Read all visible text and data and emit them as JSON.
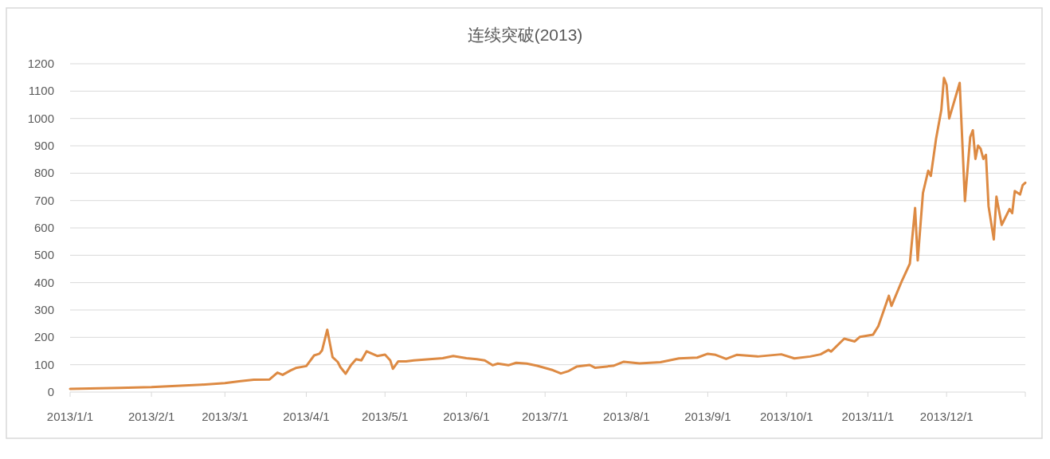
{
  "chart_data": {
    "type": "line",
    "title": "连续突破(2013)",
    "x": [
      "2013-01-01",
      "2013-01-20",
      "2013-02-01",
      "2013-02-20",
      "2013-03-01",
      "2013-03-07",
      "2013-03-12",
      "2013-03-18",
      "2013-03-21",
      "2013-03-23",
      "2013-03-26",
      "2013-03-28",
      "2013-04-01",
      "2013-04-04",
      "2013-04-06",
      "2013-04-07",
      "2013-04-09",
      "2013-04-11",
      "2013-04-13",
      "2013-04-14",
      "2013-04-16",
      "2013-04-18",
      "2013-04-20",
      "2013-04-22",
      "2013-04-24",
      "2013-04-28",
      "2013-05-01",
      "2013-05-03",
      "2013-05-04",
      "2013-05-06",
      "2013-05-09",
      "2013-05-12",
      "2013-05-18",
      "2013-05-23",
      "2013-05-27",
      "2013-06-01",
      "2013-06-05",
      "2013-06-08",
      "2013-06-11",
      "2013-06-13",
      "2013-06-17",
      "2013-06-20",
      "2013-06-24",
      "2013-06-28",
      "2013-07-04",
      "2013-07-07",
      "2013-07-10",
      "2013-07-13",
      "2013-07-18",
      "2013-07-20",
      "2013-07-27",
      "2013-07-31",
      "2013-08-06",
      "2013-08-14",
      "2013-08-21",
      "2013-08-28",
      "2013-09-01",
      "2013-09-04",
      "2013-09-08",
      "2013-09-12",
      "2013-09-20",
      "2013-09-29",
      "2013-10-04",
      "2013-10-10",
      "2013-10-14",
      "2013-10-17",
      "2013-10-18",
      "2013-10-23",
      "2013-10-27",
      "2013-10-29",
      "2013-11-03",
      "2013-11-05",
      "2013-11-09",
      "2013-11-10",
      "2013-11-14",
      "2013-11-17",
      "2013-11-19",
      "2013-11-20",
      "2013-11-22",
      "2013-11-24",
      "2013-11-25",
      "2013-11-27",
      "2013-11-29",
      "2013-11-30",
      "2013-12-01",
      "2013-12-02",
      "2013-12-06",
      "2013-12-08",
      "2013-12-10",
      "2013-12-11",
      "2013-12-12",
      "2013-12-13",
      "2013-12-14",
      "2013-12-15",
      "2013-12-16",
      "2013-12-17",
      "2013-12-19",
      "2013-12-20",
      "2013-12-22",
      "2013-12-25",
      "2013-12-26",
      "2013-12-27",
      "2013-12-29",
      "2013-12-30",
      "2013-12-31"
    ],
    "series": [
      {
        "color": "#dd8a43",
        "values": [
          12,
          15,
          18,
          27,
          33,
          40,
          45,
          46,
          71,
          63,
          79,
          88,
          95,
          134,
          140,
          152,
          228,
          128,
          110,
          91,
          67,
          98,
          120,
          116,
          149,
          132,
          137,
          116,
          85,
          112,
          112,
          116,
          120,
          124,
          132,
          124,
          120,
          116,
          98,
          104,
          98,
          107,
          104,
          96,
          80,
          68,
          77,
          93,
          99,
          89,
          96,
          111,
          105,
          109,
          123,
          126,
          140,
          136,
          121,
          136,
          130,
          138,
          123,
          130,
          138,
          154,
          148,
          195,
          185,
          202,
          210,
          241,
          352,
          315,
          407,
          469,
          673,
          481,
          728,
          809,
          790,
          926,
          1031,
          1148,
          1123,
          1000,
          1130,
          698,
          932,
          957,
          852,
          901,
          889,
          852,
          867,
          679,
          558,
          714,
          611,
          669,
          654,
          735,
          722,
          756,
          765
        ]
      }
    ],
    "xlim": [
      "2013-01-01",
      "2013-12-31"
    ],
    "xticks": [
      {
        "value": "2013-01-01",
        "label": "2013/1/1"
      },
      {
        "value": "2013-02-01",
        "label": "2013/2/1"
      },
      {
        "value": "2013-03-01",
        "label": "2013/3/1"
      },
      {
        "value": "2013-04-01",
        "label": "2013/4/1"
      },
      {
        "value": "2013-05-01",
        "label": "2013/5/1"
      },
      {
        "value": "2013-06-01",
        "label": "2013/6/1"
      },
      {
        "value": "2013-07-01",
        "label": "2013/7/1"
      },
      {
        "value": "2013-08-01",
        "label": "2013/8/1"
      },
      {
        "value": "2013-09-01",
        "label": "2013/9/1"
      },
      {
        "value": "2013-10-01",
        "label": "2013/10/1"
      },
      {
        "value": "2013-11-01",
        "label": "2013/11/1"
      },
      {
        "value": "2013-12-01",
        "label": "2013/12/1"
      }
    ],
    "ylim": [
      0,
      1200
    ],
    "yticks": [
      0,
      100,
      200,
      300,
      400,
      500,
      600,
      700,
      800,
      900,
      1000,
      1100,
      1200
    ],
    "grid": "y",
    "marker": "none",
    "line_style": "solid"
  }
}
